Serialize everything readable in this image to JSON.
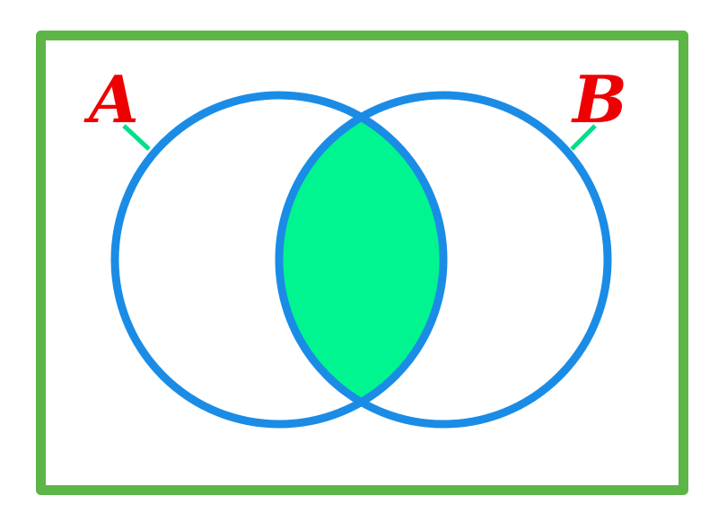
{
  "diagram": {
    "type": "venn",
    "highlighted_region": "A ∩ B",
    "sets": [
      {
        "label": "A"
      },
      {
        "label": "B"
      }
    ]
  },
  "colors": {
    "background": "#ffffff",
    "universe_border": "#5db548",
    "circle_stroke": "#1a8ce6",
    "intersection_fill": "#00f590",
    "label_text": "#ee0000",
    "leader_line": "#00e08a"
  }
}
